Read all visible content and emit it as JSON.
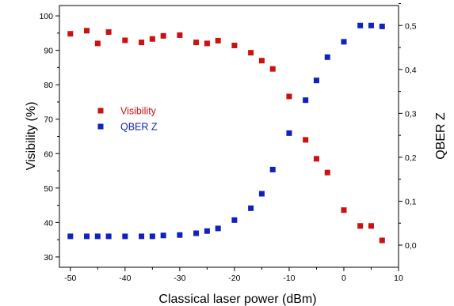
{
  "chart_data": {
    "type": "scatter",
    "xlabel": "Classical laser power (dBm)",
    "ylabel_left": "Visibility (%)",
    "ylabel_right": "QBER Z",
    "xlim": [
      -52,
      10
    ],
    "ylim_left": [
      27,
      103
    ],
    "ylim_right": [
      -0.0504,
      0.5455
    ],
    "x_ticks": [
      -50,
      -40,
      -30,
      -20,
      -10,
      0,
      10
    ],
    "x_tick_labels": [
      "-50",
      "-40",
      "-30",
      "-20",
      "-10",
      "0",
      "10"
    ],
    "y_left_ticks": [
      30,
      40,
      50,
      60,
      70,
      80,
      90,
      100
    ],
    "y_left_tick_labels": [
      "30",
      "40",
      "50",
      "60",
      "70",
      "80",
      "90",
      "100"
    ],
    "y_right_ticks": [
      0.0,
      0.1,
      0.2,
      0.3,
      0.4,
      0.5
    ],
    "y_right_tick_labels": [
      "0,0",
      "0,1",
      "0,2",
      "0,3",
      "0,4",
      "0,5"
    ],
    "grid": false,
    "legend_position": "center-left",
    "series": [
      {
        "name": "Visibility",
        "axis": "left",
        "color": "#cc1111",
        "marker": "square",
        "x": [
          -50,
          -47,
          -45,
          -43,
          -40,
          -37,
          -35,
          -33,
          -30,
          -27,
          -25,
          -23,
          -20,
          -17,
          -15,
          -13,
          -10,
          -7,
          -5,
          -3,
          0,
          3,
          5,
          7
        ],
        "y": [
          94.8,
          95.7,
          92.0,
          95.3,
          92.9,
          92.3,
          93.3,
          94.2,
          94.4,
          92.3,
          92.0,
          92.8,
          91.4,
          89.3,
          87.0,
          84.6,
          76.6,
          64.0,
          58.5,
          54.5,
          43.6,
          39.0,
          39.0,
          34.8
        ]
      },
      {
        "name": "QBER Z",
        "axis": "right",
        "color": "#1122bb",
        "marker": "square",
        "x": [
          -50,
          -47,
          -45,
          -43,
          -40,
          -37,
          -35,
          -33,
          -30,
          -27,
          -25,
          -23,
          -20,
          -17,
          -15,
          -13,
          -10,
          -7,
          -5,
          -3,
          0,
          3,
          5,
          7
        ],
        "y": [
          0.02,
          0.02,
          0.02,
          0.02,
          0.02,
          0.02,
          0.02,
          0.022,
          0.023,
          0.027,
          0.032,
          0.038,
          0.057,
          0.084,
          0.117,
          0.172,
          0.255,
          0.33,
          0.375,
          0.428,
          0.463,
          0.5,
          0.5,
          0.498
        ]
      }
    ]
  }
}
